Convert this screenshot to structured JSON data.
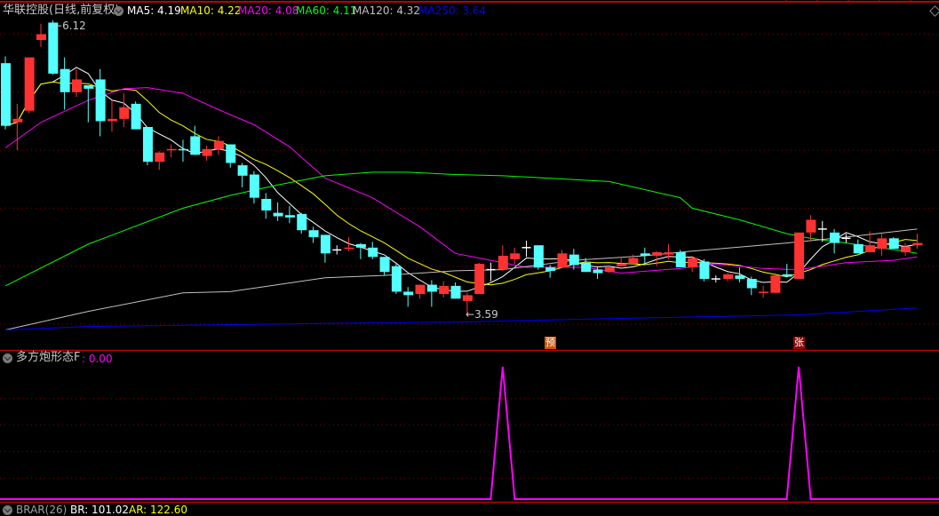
{
  "header": {
    "title": "华联控股(日线,前复权)",
    "ma_labels": [
      {
        "text": "MA5: 4.19",
        "color": "#ffffff"
      },
      {
        "text": "MA10: 4.22",
        "color": "#ffff00"
      },
      {
        "text": "MA20: 4.08",
        "color": "#ff00ff"
      },
      {
        "text": "MA60: 4.11",
        "color": "#00ff00"
      },
      {
        "text": "MA120: 4.32",
        "color": "#c0c0c0"
      },
      {
        "text": "MA250: 3.64",
        "color": "#0000ff"
      }
    ]
  },
  "annotations": {
    "high_label": "6.12",
    "low_label": "3.59",
    "marker_yu": "预",
    "marker_zhang": "张"
  },
  "indicator_panel": {
    "name": "多方炮形态F",
    "value": ": 0.00"
  },
  "bottom_panel": {
    "name": "BRAR(26)",
    "br": "BR: 101.02",
    "ar": "AR: 122.60"
  },
  "colors": {
    "up": "#ff3232",
    "down": "#54ffff",
    "flat": "#ffffff",
    "grid": "#8b0000",
    "border": "#c00000",
    "indicator": "#ff00ff"
  },
  "chart_data": [
    {
      "type": "candlestick",
      "title": "华联控股(日线,前复权)",
      "ylim": [
        3.45,
        6.2
      ],
      "grid": true,
      "high_marker": {
        "index": 4,
        "value": 6.12
      },
      "low_marker": {
        "index": 39,
        "value": 3.59
      },
      "signals": [
        {
          "index": 46,
          "label": "预"
        },
        {
          "index": 67,
          "label": "张"
        }
      ],
      "candles_ohlc": [
        [
          5.75,
          5.81,
          5.18,
          5.21
        ],
        [
          5.24,
          5.4,
          5.0,
          5.27
        ],
        [
          5.34,
          5.8,
          5.32,
          5.8
        ],
        [
          5.95,
          6.09,
          5.89,
          6.0
        ],
        [
          6.1,
          6.12,
          5.65,
          5.66
        ],
        [
          5.7,
          5.8,
          5.35,
          5.5
        ],
        [
          5.5,
          5.7,
          5.46,
          5.61
        ],
        [
          5.56,
          5.56,
          5.24,
          5.53
        ],
        [
          5.61,
          5.7,
          5.12,
          5.25
        ],
        [
          5.25,
          5.43,
          5.16,
          5.27
        ],
        [
          5.27,
          5.49,
          5.2,
          5.37
        ],
        [
          5.4,
          5.42,
          5.18,
          5.18
        ],
        [
          5.2,
          5.2,
          4.87,
          4.9
        ],
        [
          4.9,
          4.99,
          4.83,
          4.98
        ],
        [
          5.0,
          5.05,
          4.94,
          5.01
        ],
        [
          5.01,
          5.09,
          4.9,
          5.0
        ],
        [
          5.12,
          5.21,
          4.96,
          4.96
        ],
        [
          4.95,
          5.04,
          4.91,
          5.01
        ],
        [
          5.01,
          5.12,
          4.96,
          5.08
        ],
        [
          5.05,
          5.05,
          4.85,
          4.89
        ],
        [
          4.87,
          4.89,
          4.68,
          4.78
        ],
        [
          4.79,
          4.82,
          4.54,
          4.59
        ],
        [
          4.58,
          4.63,
          4.41,
          4.48
        ],
        [
          4.46,
          4.55,
          4.39,
          4.43
        ],
        [
          4.44,
          4.52,
          4.37,
          4.42
        ],
        [
          4.45,
          4.46,
          4.28,
          4.31
        ],
        [
          4.31,
          4.34,
          4.2,
          4.25
        ],
        [
          4.27,
          4.27,
          4.03,
          4.11
        ],
        [
          4.14,
          4.18,
          4.1,
          4.14
        ],
        [
          4.15,
          4.25,
          4.13,
          4.16
        ],
        [
          4.19,
          4.2,
          4.06,
          4.16
        ],
        [
          4.16,
          4.21,
          4.06,
          4.08
        ],
        [
          4.08,
          4.08,
          3.92,
          3.95
        ],
        [
          4.0,
          4.02,
          3.76,
          3.78
        ],
        [
          3.78,
          3.82,
          3.65,
          3.75
        ],
        [
          3.76,
          3.84,
          3.72,
          3.84
        ],
        [
          3.84,
          3.88,
          3.65,
          3.78
        ],
        [
          3.76,
          3.87,
          3.73,
          3.83
        ],
        [
          3.83,
          3.86,
          3.72,
          3.72
        ],
        [
          3.7,
          3.77,
          3.59,
          3.75
        ],
        [
          3.76,
          4.03,
          3.76,
          4.02
        ],
        [
          3.97,
          4.03,
          3.87,
          3.97
        ],
        [
          3.97,
          4.18,
          3.96,
          4.09
        ],
        [
          4.06,
          4.16,
          4.02,
          4.11
        ],
        [
          4.16,
          4.22,
          4.08,
          4.16
        ],
        [
          4.18,
          4.18,
          3.97,
          3.99
        ],
        [
          3.99,
          4.01,
          3.9,
          3.96
        ],
        [
          3.99,
          4.14,
          3.99,
          4.11
        ],
        [
          4.1,
          4.15,
          3.97,
          4.01
        ],
        [
          4.03,
          4.07,
          3.95,
          3.95
        ],
        [
          3.97,
          3.99,
          3.89,
          3.94
        ],
        [
          3.95,
          4.01,
          3.94,
          3.99
        ],
        [
          4.0,
          4.08,
          4.0,
          4.02
        ],
        [
          4.02,
          4.1,
          4.02,
          4.07
        ],
        [
          4.11,
          4.16,
          4.01,
          4.09
        ],
        [
          4.09,
          4.13,
          4.0,
          4.12
        ],
        [
          4.1,
          4.19,
          4.06,
          4.12
        ],
        [
          4.12,
          4.14,
          3.99,
          3.99
        ],
        [
          3.99,
          4.09,
          3.95,
          4.07
        ],
        [
          4.04,
          4.06,
          3.87,
          3.89
        ],
        [
          3.89,
          3.92,
          3.86,
          3.89
        ],
        [
          3.89,
          3.94,
          3.87,
          3.93
        ],
        [
          3.92,
          3.99,
          3.86,
          3.89
        ],
        [
          3.89,
          3.91,
          3.75,
          3.81
        ],
        [
          3.77,
          3.83,
          3.73,
          3.78
        ],
        [
          3.77,
          3.94,
          3.77,
          3.92
        ],
        [
          3.93,
          4.02,
          3.91,
          3.91
        ],
        [
          3.89,
          4.29,
          3.89,
          4.29
        ],
        [
          4.29,
          4.44,
          4.22,
          4.4
        ],
        [
          4.32,
          4.39,
          4.21,
          4.32
        ],
        [
          4.29,
          4.32,
          4.11,
          4.2
        ],
        [
          4.24,
          4.28,
          4.2,
          4.24
        ],
        [
          4.19,
          4.23,
          4.11,
          4.11
        ],
        [
          4.12,
          4.3,
          4.12,
          4.18
        ],
        [
          4.15,
          4.28,
          4.09,
          4.24
        ],
        [
          4.24,
          4.25,
          4.15,
          4.15
        ],
        [
          4.12,
          4.2,
          4.09,
          4.17
        ],
        [
          4.18,
          4.28,
          4.15,
          4.2
        ]
      ],
      "moving_averages": [
        {
          "name": "MA5",
          "period": 5,
          "color": "#ffffff"
        },
        {
          "name": "MA10",
          "period": 10,
          "color": "#ffff00"
        },
        {
          "name": "MA20",
          "color": "#ff00ff",
          "points": [
            [
              0,
              5.02
            ],
            [
              3,
              5.24
            ],
            [
              7,
              5.43
            ],
            [
              10,
              5.53
            ],
            [
              12,
              5.54
            ],
            [
              15,
              5.49
            ],
            [
              18,
              5.35
            ],
            [
              21,
              5.22
            ],
            [
              24,
              5.03
            ],
            [
              27,
              4.76
            ],
            [
              31,
              4.59
            ],
            [
              35,
              4.34
            ],
            [
              38,
              4.11
            ],
            [
              41,
              4.05
            ],
            [
              44,
              3.99
            ],
            [
              49,
              3.99
            ],
            [
              52,
              3.94
            ],
            [
              57,
              3.98
            ],
            [
              60,
              4.02
            ],
            [
              64,
              3.98
            ],
            [
              67,
              3.97
            ],
            [
              71,
              4.03
            ],
            [
              75,
              4.05
            ],
            [
              77,
              4.08
            ]
          ]
        },
        {
          "name": "MA60",
          "color": "#00ff00",
          "points": [
            [
              0,
              3.83
            ],
            [
              7,
              4.19
            ],
            [
              15,
              4.5
            ],
            [
              19,
              4.61
            ],
            [
              23,
              4.7
            ],
            [
              27,
              4.78
            ],
            [
              31,
              4.81
            ],
            [
              34,
              4.81
            ],
            [
              38,
              4.79
            ],
            [
              42,
              4.78
            ],
            [
              51,
              4.73
            ],
            [
              57,
              4.59
            ],
            [
              58,
              4.5
            ],
            [
              62,
              4.4
            ],
            [
              66,
              4.28
            ],
            [
              68,
              4.24
            ],
            [
              71,
              4.2
            ],
            [
              73,
              4.17
            ],
            [
              76,
              4.13
            ],
            [
              77,
              4.11
            ]
          ]
        },
        {
          "name": "MA120",
          "color": "#c0c0c0",
          "points": [
            [
              0,
              3.45
            ],
            [
              7,
              3.61
            ],
            [
              15,
              3.77
            ],
            [
              19,
              3.78
            ],
            [
              27,
              3.9
            ],
            [
              32,
              3.92
            ],
            [
              38,
              3.96
            ],
            [
              42,
              3.97
            ],
            [
              48,
              4.05
            ],
            [
              54,
              4.09
            ],
            [
              58,
              4.13
            ],
            [
              66,
              4.2
            ],
            [
              71,
              4.25
            ],
            [
              77,
              4.32
            ]
          ]
        },
        {
          "name": "MA250",
          "color": "#0000ff",
          "points": [
            [
              0,
              3.45
            ],
            [
              7,
              3.48
            ],
            [
              22,
              3.5
            ],
            [
              39,
              3.52
            ],
            [
              52,
              3.55
            ],
            [
              67,
              3.58
            ],
            [
              77,
              3.64
            ]
          ]
        }
      ]
    },
    {
      "type": "line",
      "title": "多方炮形态F",
      "ylim": [
        0,
        1
      ],
      "grid": true,
      "series": [
        {
          "name": "多方炮形态F",
          "color": "#ff00ff",
          "spikes_at_index": [
            42,
            67
          ],
          "spike_value": 1,
          "base_value": 0
        }
      ]
    }
  ]
}
